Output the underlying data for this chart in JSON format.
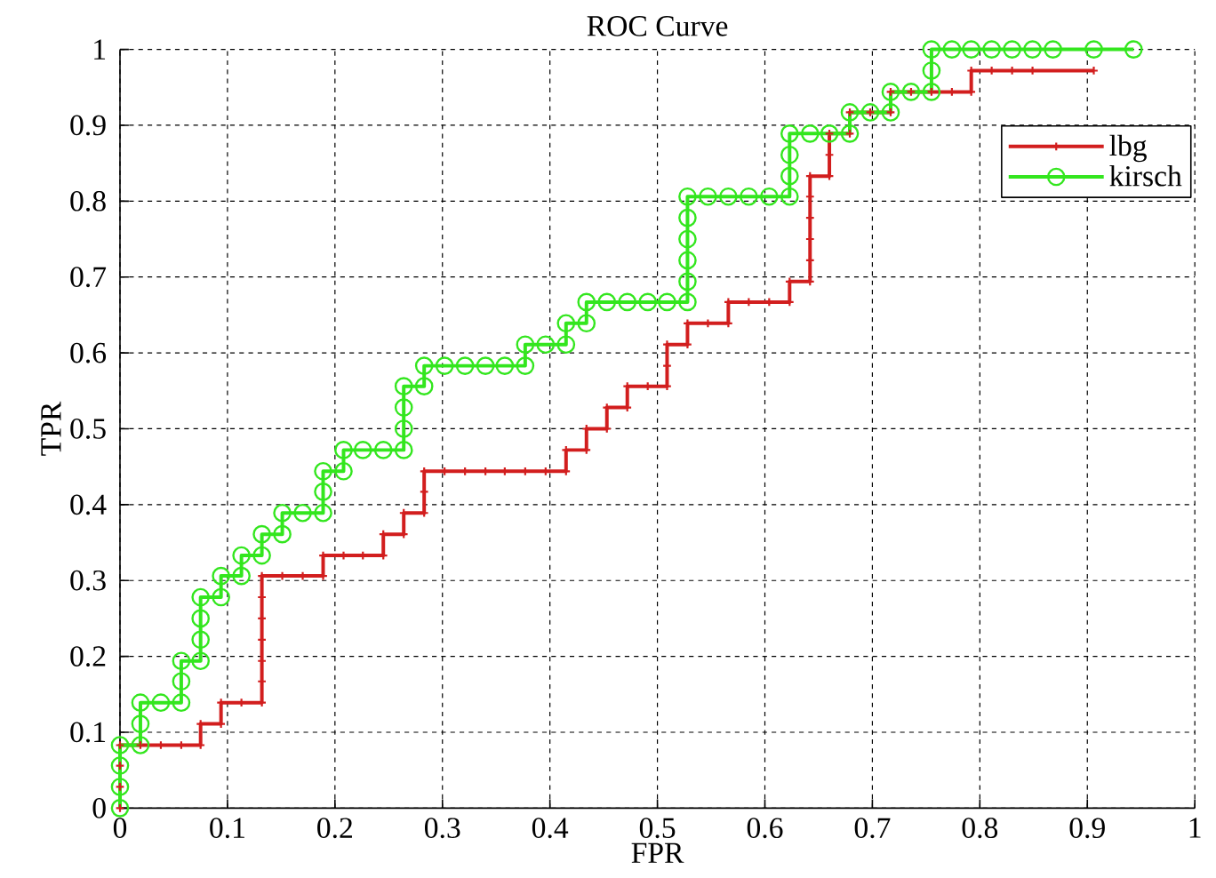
{
  "chart_data": {
    "type": "line",
    "title": "ROC Curve",
    "xlabel": "FPR",
    "ylabel": "TPR",
    "xlim": [
      0,
      1
    ],
    "ylim": [
      0,
      1
    ],
    "xticks": [
      0,
      0.1,
      0.2,
      0.3,
      0.4,
      0.5,
      0.6,
      0.7,
      0.8,
      0.9,
      1
    ],
    "yticks": [
      0,
      0.1,
      0.2,
      0.3,
      0.4,
      0.5,
      0.6,
      0.7,
      0.8,
      0.9,
      1
    ],
    "grid": true,
    "legend": "top right",
    "series": [
      {
        "name": "lbg",
        "color": "#d21e1e",
        "marker": "cross",
        "x": [
          0,
          0,
          0,
          0,
          0.019,
          0.038,
          0.057,
          0.075,
          0.075,
          0.094,
          0.094,
          0.113,
          0.132,
          0.132,
          0.132,
          0.132,
          0.132,
          0.132,
          0.132,
          0.151,
          0.17,
          0.189,
          0.189,
          0.208,
          0.226,
          0.245,
          0.245,
          0.264,
          0.264,
          0.283,
          0.283,
          0.283,
          0.302,
          0.321,
          0.34,
          0.358,
          0.377,
          0.396,
          0.415,
          0.415,
          0.434,
          0.434,
          0.453,
          0.453,
          0.472,
          0.472,
          0.491,
          0.509,
          0.509,
          0.509,
          0.528,
          0.528,
          0.547,
          0.566,
          0.566,
          0.585,
          0.604,
          0.623,
          0.623,
          0.642,
          0.642,
          0.642,
          0.642,
          0.642,
          0.642,
          0.66,
          0.66,
          0.66,
          0.679,
          0.679,
          0.698,
          0.717,
          0.717,
          0.736,
          0.755,
          0.774,
          0.792,
          0.792,
          0.811,
          0.83,
          0.849,
          0.906
        ],
        "values": [
          0,
          0.028,
          0.056,
          0.083,
          0.083,
          0.083,
          0.083,
          0.083,
          0.111,
          0.111,
          0.139,
          0.139,
          0.139,
          0.167,
          0.194,
          0.222,
          0.25,
          0.278,
          0.306,
          0.306,
          0.306,
          0.306,
          0.333,
          0.333,
          0.333,
          0.333,
          0.361,
          0.361,
          0.389,
          0.389,
          0.417,
          0.444,
          0.444,
          0.444,
          0.444,
          0.444,
          0.444,
          0.444,
          0.444,
          0.472,
          0.472,
          0.5,
          0.5,
          0.528,
          0.528,
          0.556,
          0.556,
          0.556,
          0.583,
          0.611,
          0.611,
          0.639,
          0.639,
          0.639,
          0.667,
          0.667,
          0.667,
          0.667,
          0.694,
          0.694,
          0.722,
          0.75,
          0.778,
          0.806,
          0.833,
          0.833,
          0.861,
          0.889,
          0.889,
          0.917,
          0.917,
          0.917,
          0.944,
          0.944,
          0.944,
          0.944,
          0.944,
          0.972,
          0.972,
          0.972,
          0.972,
          0.972
        ]
      },
      {
        "name": "kirsch",
        "color": "#33e61e",
        "marker": "circle",
        "x": [
          0,
          0,
          0,
          0,
          0.019,
          0.019,
          0.019,
          0.038,
          0.057,
          0.057,
          0.057,
          0.075,
          0.075,
          0.075,
          0.075,
          0.094,
          0.094,
          0.113,
          0.113,
          0.132,
          0.132,
          0.151,
          0.151,
          0.17,
          0.189,
          0.189,
          0.189,
          0.208,
          0.208,
          0.226,
          0.245,
          0.264,
          0.264,
          0.264,
          0.264,
          0.283,
          0.283,
          0.302,
          0.321,
          0.34,
          0.358,
          0.377,
          0.377,
          0.396,
          0.415,
          0.415,
          0.434,
          0.434,
          0.453,
          0.472,
          0.491,
          0.509,
          0.528,
          0.528,
          0.528,
          0.528,
          0.528,
          0.528,
          0.547,
          0.566,
          0.585,
          0.604,
          0.623,
          0.623,
          0.623,
          0.623,
          0.642,
          0.66,
          0.679,
          0.679,
          0.698,
          0.717,
          0.717,
          0.736,
          0.755,
          0.755,
          0.755,
          0.774,
          0.792,
          0.811,
          0.83,
          0.849,
          0.868,
          0.906,
          0.943
        ],
        "values": [
          0,
          0.028,
          0.056,
          0.083,
          0.083,
          0.111,
          0.139,
          0.139,
          0.139,
          0.167,
          0.194,
          0.194,
          0.222,
          0.25,
          0.278,
          0.278,
          0.306,
          0.306,
          0.333,
          0.333,
          0.361,
          0.361,
          0.389,
          0.389,
          0.389,
          0.417,
          0.444,
          0.444,
          0.472,
          0.472,
          0.472,
          0.472,
          0.5,
          0.528,
          0.556,
          0.556,
          0.583,
          0.583,
          0.583,
          0.583,
          0.583,
          0.583,
          0.611,
          0.611,
          0.611,
          0.639,
          0.639,
          0.667,
          0.667,
          0.667,
          0.667,
          0.667,
          0.667,
          0.694,
          0.722,
          0.75,
          0.778,
          0.806,
          0.806,
          0.806,
          0.806,
          0.806,
          0.806,
          0.833,
          0.861,
          0.889,
          0.889,
          0.889,
          0.889,
          0.917,
          0.917,
          0.917,
          0.944,
          0.944,
          0.944,
          0.972,
          1,
          1,
          1,
          1,
          1,
          1,
          1,
          1,
          1
        ]
      }
    ]
  }
}
